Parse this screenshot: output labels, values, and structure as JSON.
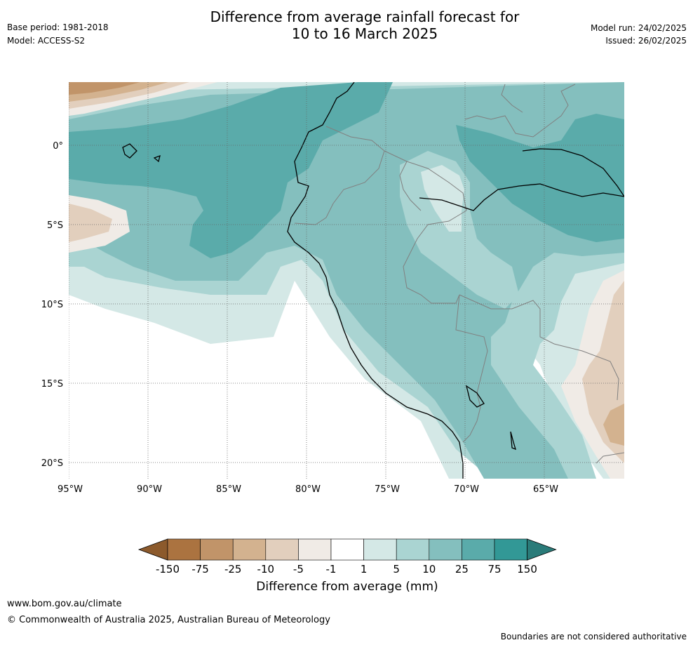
{
  "header": {
    "base_period": "Base period: 1981-2018",
    "model": "Model: ACCESS-S2",
    "title_line1": "Difference from average rainfall forecast for",
    "title_line2": "10 to 16 March 2025",
    "model_run": "Model run: 24/02/2025",
    "issued": "Issued: 26/02/2025"
  },
  "map": {
    "lat_labels": [
      "0°",
      "5°S",
      "10°S",
      "15°S",
      "20°S"
    ],
    "lon_labels": [
      "95°W",
      "90°W",
      "85°W",
      "80°W",
      "75°W",
      "70°W",
      "65°W"
    ],
    "colors": {
      "land_border": "#808080",
      "coastline": "#000000",
      "gridline": "#666666"
    }
  },
  "legend": {
    "title": "Difference from average (mm)",
    "tick_labels": [
      "-150",
      "-75",
      "-25",
      "-10",
      "-5",
      "-1",
      "1",
      "5",
      "10",
      "25",
      "75",
      "150"
    ],
    "colors": [
      "#8c5a2c",
      "#ab7340",
      "#c19469",
      "#d3b28f",
      "#e2cfbd",
      "#f0ebe6",
      "#ffffff",
      "#d4e8e6",
      "#aad4d2",
      "#84bfbe",
      "#5aabaa",
      "#329896",
      "#2a7b79"
    ]
  },
  "footer": {
    "url": "www.bom.gov.au/climate",
    "copyright": "© Commonwealth of Australia 2025, Australian Bureau of Meteorology",
    "disclaimer": "Boundaries are not considered authoritative"
  }
}
